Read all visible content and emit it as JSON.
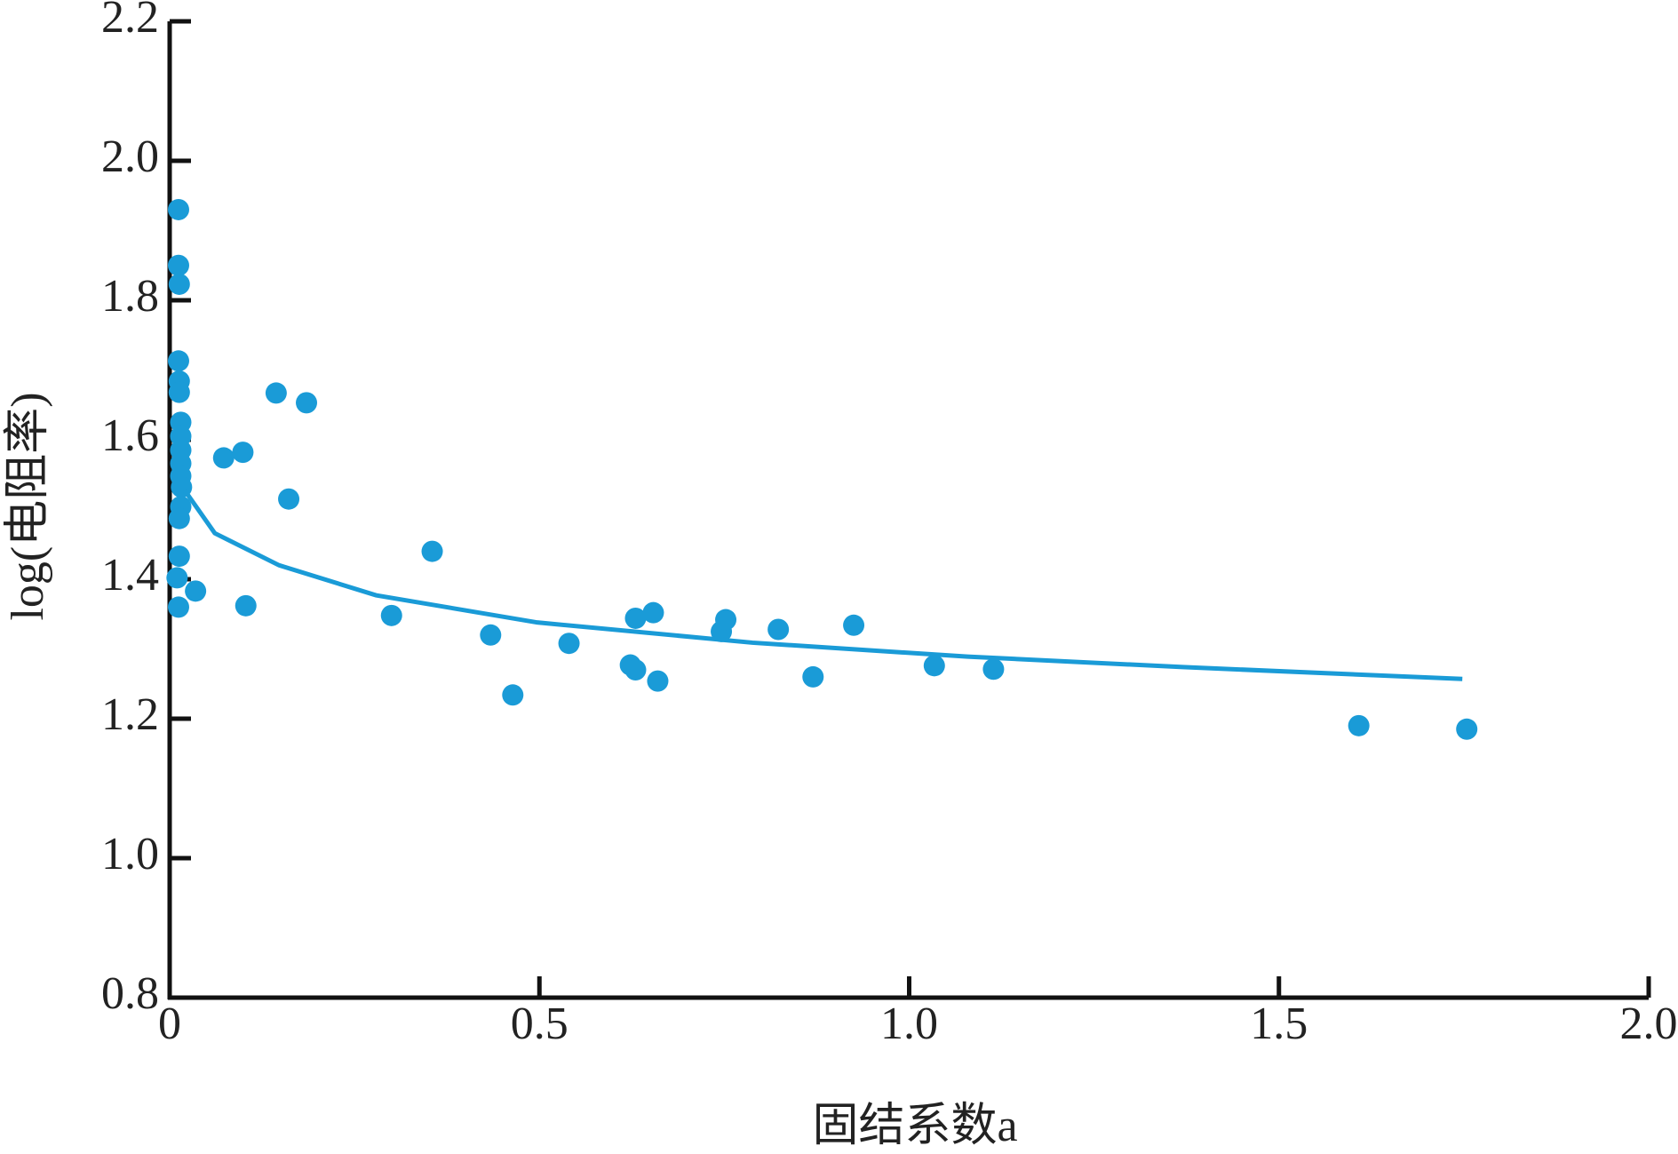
{
  "chart_data": {
    "type": "scatter",
    "x_label": "固结系数a",
    "y_label": "log(电阻率)",
    "xlim": [
      0,
      2
    ],
    "ylim": [
      0.8,
      2.2
    ],
    "xticks": [
      0,
      0.5,
      {
        "value": 1,
        "label": "1.0"
      },
      {
        "value": 1.5,
        "label": "1.5"
      },
      {
        "value": 2,
        "label": "2.0"
      }
    ],
    "yticks": [
      0.8,
      {
        "value": 1,
        "label": "1.0"
      },
      1.2,
      1.4,
      1.6,
      1.8,
      {
        "value": 2,
        "label": "2.0"
      },
      2.2
    ],
    "series": [
      {
        "type": "scatter",
        "color": "#1a9bd7",
        "x": [
          0.012,
          0.012,
          0.013,
          0.012,
          0.013,
          0.013,
          0.015,
          0.015,
          0.015,
          0.015,
          0.015,
          0.016,
          0.015,
          0.013,
          0.013,
          0.01,
          0.012,
          0.035,
          0.073,
          0.099,
          0.103,
          0.144,
          0.185,
          0.161,
          0.3,
          0.355,
          0.434,
          0.464,
          0.54,
          0.623,
          0.63,
          0.63,
          0.654,
          0.66,
          0.746,
          0.752,
          0.823,
          0.87,
          0.925,
          1.034,
          1.114,
          1.608,
          1.754
        ],
        "values": [
          1.93,
          1.85,
          1.823,
          1.713,
          1.684,
          1.668,
          1.625,
          1.605,
          1.585,
          1.566,
          1.548,
          1.532,
          1.504,
          1.487,
          1.433,
          1.402,
          1.36,
          1.383,
          1.574,
          1.582,
          1.362,
          1.667,
          1.653,
          1.515,
          1.348,
          1.44,
          1.32,
          1.234,
          1.308,
          1.277,
          1.27,
          1.344,
          1.352,
          1.254,
          1.325,
          1.342,
          1.328,
          1.26,
          1.334,
          1.276,
          1.271,
          1.19,
          1.185
        ]
      },
      {
        "type": "line",
        "color": "#1a9bd7",
        "x": [
          0.02,
          0.061,
          0.148,
          0.279,
          0.497,
          0.788,
          1.079,
          1.37,
          1.748
        ],
        "values": [
          1.528,
          1.466,
          1.42,
          1.377,
          1.338,
          1.309,
          1.289,
          1.274,
          1.257
        ]
      }
    ]
  }
}
